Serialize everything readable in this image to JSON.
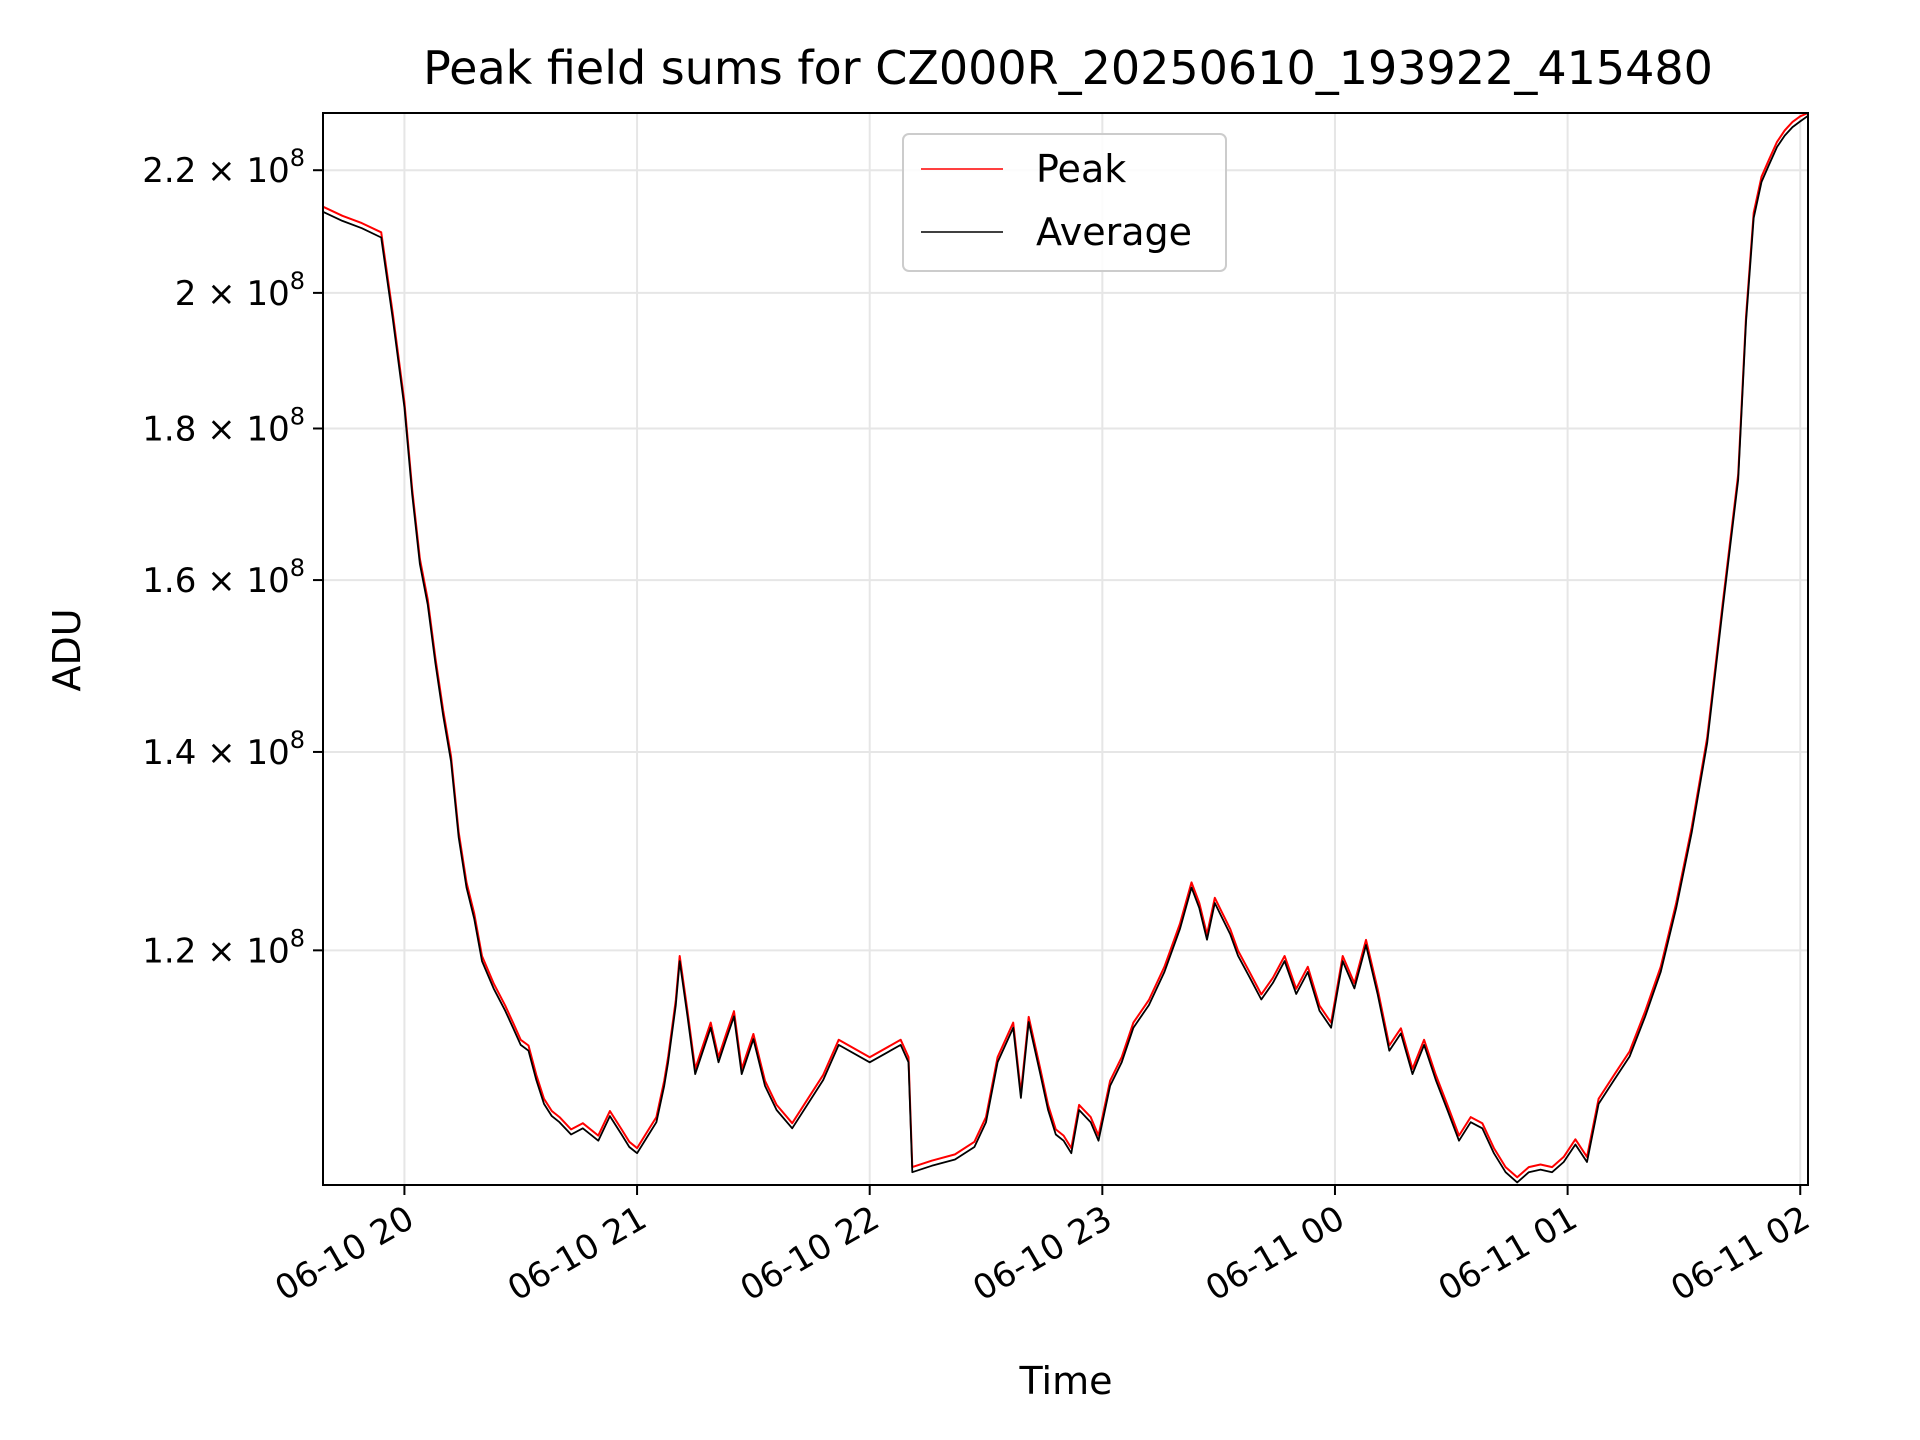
{
  "chart_data": {
    "type": "line",
    "title": "Peak field sums for CZ000R_20250610_193922_415480",
    "xlabel": "Time",
    "ylabel": "ADU",
    "y_scale": "log",
    "ylim": [
      100000000,
      230000000
    ],
    "xlim": [
      "2025-06-10 19:39",
      "2025-06-11 02:02"
    ],
    "grid": true,
    "legend_position": "top-center",
    "x_ticks": [
      {
        "t": "2025-06-10 20:00",
        "label": "06-10 20"
      },
      {
        "t": "2025-06-10 21:00",
        "label": "06-10 21"
      },
      {
        "t": "2025-06-10 22:00",
        "label": "06-10 22"
      },
      {
        "t": "2025-06-10 23:00",
        "label": "06-10 23"
      },
      {
        "t": "2025-06-11 00:00",
        "label": "06-11 00"
      },
      {
        "t": "2025-06-11 01:00",
        "label": "06-11 01"
      },
      {
        "t": "2025-06-11 02:00",
        "label": "06-11 02"
      }
    ],
    "y_ticks": [
      {
        "value": 120000000,
        "mantissa": "1.2",
        "exponent": "8"
      },
      {
        "value": 140000000,
        "mantissa": "1.4",
        "exponent": "8"
      },
      {
        "value": 160000000,
        "mantissa": "1.6",
        "exponent": "8"
      },
      {
        "value": 180000000,
        "mantissa": "1.8",
        "exponent": "8"
      },
      {
        "value": 200000000,
        "mantissa": "2",
        "exponent": "8"
      },
      {
        "value": 220000000,
        "mantissa": "2.2",
        "exponent": "8"
      }
    ],
    "series": [
      {
        "name": "Peak",
        "color": "#ff0000",
        "offset": 1.004
      },
      {
        "name": "Average",
        "color": "#000000",
        "offset": 1.0
      }
    ],
    "x": [
      "2025-06-10 19:39",
      "2025-06-10 19:44",
      "2025-06-10 19:49",
      "2025-06-10 19:54",
      "2025-06-10 19:57",
      "2025-06-10 20:00",
      "2025-06-10 20:02",
      "2025-06-10 20:04",
      "2025-06-10 20:06",
      "2025-06-10 20:08",
      "2025-06-10 20:10",
      "2025-06-10 20:12",
      "2025-06-10 20:14",
      "2025-06-10 20:16",
      "2025-06-10 20:18",
      "2025-06-10 20:20",
      "2025-06-10 20:23",
      "2025-06-10 20:26",
      "2025-06-10 20:28",
      "2025-06-10 20:30",
      "2025-06-10 20:32",
      "2025-06-10 20:34",
      "2025-06-10 20:36",
      "2025-06-10 20:38",
      "2025-06-10 20:40",
      "2025-06-10 20:43",
      "2025-06-10 20:46",
      "2025-06-10 20:50",
      "2025-06-10 20:53",
      "2025-06-10 20:56",
      "2025-06-10 20:58",
      "2025-06-10 21:00",
      "2025-06-10 21:03",
      "2025-06-10 21:05",
      "2025-06-10 21:07",
      "2025-06-10 21:08",
      "2025-06-10 21:10",
      "2025-06-10 21:11",
      "2025-06-10 21:13",
      "2025-06-10 21:15",
      "2025-06-10 21:17",
      "2025-06-10 21:19",
      "2025-06-10 21:21",
      "2025-06-10 21:23",
      "2025-06-10 21:25",
      "2025-06-10 21:27",
      "2025-06-10 21:30",
      "2025-06-10 21:33",
      "2025-06-10 21:36",
      "2025-06-10 21:40",
      "2025-06-10 21:48",
      "2025-06-10 21:52",
      "2025-06-10 22:00",
      "2025-06-10 22:08",
      "2025-06-10 22:10",
      "2025-06-10 22:11",
      "2025-06-10 22:16",
      "2025-06-10 22:22",
      "2025-06-10 22:27",
      "2025-06-10 22:30",
      "2025-06-10 22:33",
      "2025-06-10 22:37",
      "2025-06-10 22:39",
      "2025-06-10 22:41",
      "2025-06-10 22:44",
      "2025-06-10 22:46",
      "2025-06-10 22:48",
      "2025-06-10 22:50",
      "2025-06-10 22:52",
      "2025-06-10 22:54",
      "2025-06-10 22:57",
      "2025-06-10 22:59",
      "2025-06-10 23:02",
      "2025-06-10 23:05",
      "2025-06-10 23:08",
      "2025-06-10 23:12",
      "2025-06-10 23:16",
      "2025-06-10 23:20",
      "2025-06-10 23:23",
      "2025-06-10 23:25",
      "2025-06-10 23:27",
      "2025-06-10 23:29",
      "2025-06-10 23:31",
      "2025-06-10 23:33",
      "2025-06-10 23:35",
      "2025-06-10 23:38",
      "2025-06-10 23:41",
      "2025-06-10 23:44",
      "2025-06-10 23:47",
      "2025-06-10 23:50",
      "2025-06-10 23:53",
      "2025-06-10 23:56",
      "2025-06-10 23:59",
      "2025-06-11 00:02",
      "2025-06-11 00:05",
      "2025-06-11 00:08",
      "2025-06-11 00:11",
      "2025-06-11 00:14",
      "2025-06-11 00:17",
      "2025-06-11 00:20",
      "2025-06-11 00:23",
      "2025-06-11 00:26",
      "2025-06-11 00:29",
      "2025-06-11 00:32",
      "2025-06-11 00:35",
      "2025-06-11 00:38",
      "2025-06-11 00:41",
      "2025-06-11 00:44",
      "2025-06-11 00:47",
      "2025-06-11 00:50",
      "2025-06-11 00:53",
      "2025-06-11 00:56",
      "2025-06-11 00:59",
      "2025-06-11 01:02",
      "2025-06-11 01:05",
      "2025-06-11 01:08",
      "2025-06-11 01:12",
      "2025-06-11 01:16",
      "2025-06-11 01:20",
      "2025-06-11 01:24",
      "2025-06-11 01:28",
      "2025-06-11 01:32",
      "2025-06-11 01:36",
      "2025-06-11 01:40",
      "2025-06-11 01:44",
      "2025-06-11 01:46",
      "2025-06-11 01:48",
      "2025-06-11 01:50",
      "2025-06-11 01:52",
      "2025-06-11 01:54",
      "2025-06-11 01:56",
      "2025-06-11 01:58",
      "2025-06-11 02:00",
      "2025-06-11 02:02"
    ],
    "values": [
      213000000,
      211500000,
      210300000,
      208800000,
      196000000,
      183000000,
      171000000,
      162000000,
      157000000,
      150000000,
      144000000,
      139000000,
      131000000,
      126000000,
      123000000,
      119000000,
      116500000,
      114500000,
      113000000,
      111500000,
      111000000,
      108500000,
      106500000,
      105500000,
      105000000,
      104000000,
      104500000,
      103500000,
      105500000,
      104000000,
      103000000,
      102500000,
      104000000,
      105000000,
      108000000,
      110000000,
      115000000,
      119000000,
      114000000,
      109000000,
      111000000,
      113000000,
      110000000,
      112000000,
      114000000,
      109000000,
      112000000,
      108000000,
      106000000,
      104500000,
      108500000,
      111500000,
      110000000,
      111500000,
      110000000,
      101000000,
      101500000,
      102000000,
      103000000,
      105000000,
      110000000,
      113000000,
      107000000,
      113500000,
      109000000,
      106000000,
      104000000,
      103500000,
      102500000,
      106000000,
      105000000,
      103500000,
      108000000,
      110000000,
      113000000,
      115000000,
      118000000,
      122000000,
      126000000,
      124000000,
      121000000,
      124500000,
      123000000,
      121500000,
      119500000,
      117500000,
      115500000,
      117000000,
      119000000,
      116000000,
      118000000,
      114500000,
      113000000,
      119000000,
      116500000,
      120500000,
      116000000,
      111000000,
      112500000,
      109000000,
      111500000,
      108500000,
      106000000,
      103500000,
      105000000,
      104500000,
      102500000,
      101000000,
      100200000,
      101000000,
      101200000,
      101000000,
      101800000,
      103200000,
      101800000,
      106500000,
      108500000,
      110500000,
      114000000,
      118000000,
      124000000,
      131500000,
      141000000,
      156500000,
      173000000,
      195500000,
      212000000,
      218000000,
      221000000,
      224000000,
      226000000,
      227500000,
      228500000,
      229500000
    ]
  }
}
